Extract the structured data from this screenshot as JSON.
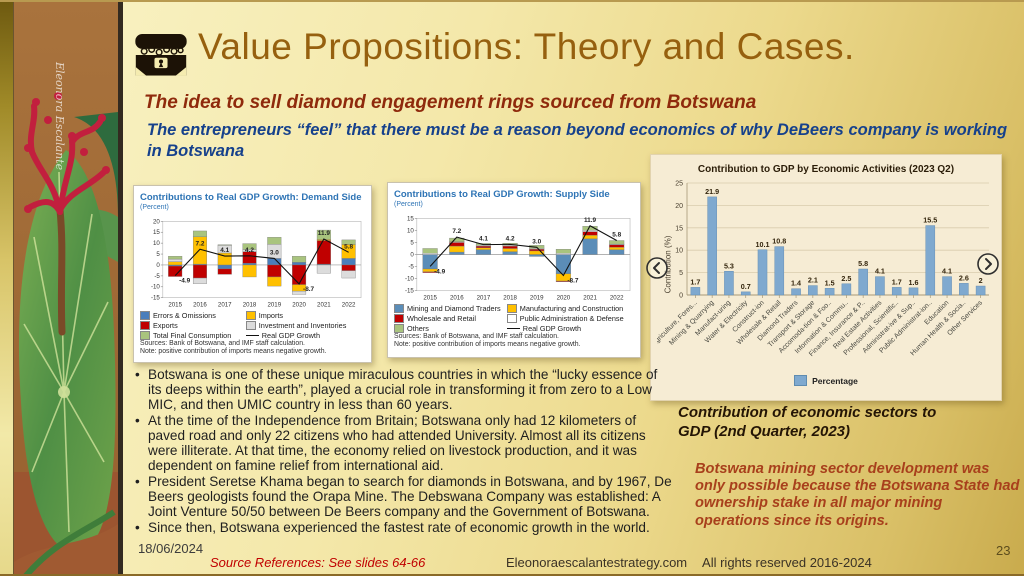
{
  "header": {
    "title": "Value Propositions: Theory and Cases.",
    "subtitle_red": "The idea to sell diamond engagement rings sourced from Botswana",
    "subtitle_blue": "The entrepreneurs “feel” that there must be a reason beyond economics of why DeBeers company is working in Botswana"
  },
  "artwork": {
    "signature": "Eleonora Escalante"
  },
  "bullets": [
    "Botswana is one of these unique miraculous countries in which the “lucky essence of its deeps within the earth”, played a crucial role in transforming it from zero to a Low MIC, and then UMIC country in less than 60 years.",
    "At the time of the Independence from Britain; Botswana only had 12 kilometers of paved road and only 22 citizens who had attended University.  Almost all its citizens were illiterate. At that time, the economy relied on livestock  production, and it was dependent on famine relief from international aid.",
    "President Seretse Khama began to search for diamonds in Botswana, and by 1967, De Beers geologists found the Orapa Mine. The Debswana Company was established: A Joint Venture  50/50 between De Beers company and the Government of Botswana.",
    "Since then, Botswana experienced the fastest rate of economic growth in the world."
  ],
  "caption": "Contribution of economic sectors to GDP (2nd Quarter, 2023)",
  "highlight": "Botswana mining sector development was only possible because the Botswana State had ownership stake in all major mining operations since its origins.",
  "footer": {
    "date": "18/06/2024",
    "source_references": "Source References: See slides 64-66",
    "website": "Eleonoraescalantestrategy.com",
    "rights": "All rights reserved 2016-2024",
    "slide_number": "23"
  },
  "colors": {
    "accent_brown": "#96600f",
    "subtitle_red": "#8f2a0c",
    "subtitle_blue": "#16418c",
    "highlight_red": "#a8401c",
    "chart_title_blue": "#2e74b5",
    "bar_blue": "#7fa9cf"
  },
  "chart_data": [
    {
      "type": "bar-stacked+line",
      "title": "Contributions to Real GDP Growth: Demand Side",
      "unit_label": "(Percent)",
      "categories": [
        "2015",
        "2016",
        "2017",
        "2018",
        "2019",
        "2020",
        "2021",
        "2022"
      ],
      "ylim": [
        -15,
        20
      ],
      "yticks": [
        20,
        15,
        10,
        5,
        0,
        -5,
        -10,
        -15
      ],
      "series": [
        {
          "name": "Errors & Omissions",
          "color": "#4a7ebb",
          "values": [
            -0.5,
            0.4,
            -1.8,
            0.8,
            3.0,
            1.2,
            0.4,
            3.0
          ]
        },
        {
          "name": "Exports",
          "color": "#c00000",
          "values": [
            -4.8,
            -6.0,
            -2.5,
            5.3,
            -5.5,
            -9.0,
            10.8,
            -2.6
          ]
        },
        {
          "name": "Imports",
          "color": "#ffc000",
          "values": [
            1.5,
            12.5,
            5.5,
            -5.5,
            -4.2,
            -3.0,
            0.5,
            6.4
          ]
        },
        {
          "name": "Investment and Inventories",
          "color": "#dcdcdc",
          "values": [
            1.2,
            -2.6,
            3.5,
            1.0,
            6.5,
            -1.5,
            -3.8,
            -3.4
          ]
        },
        {
          "name": "Total Final Consumption",
          "color": "#a9c47e",
          "values": [
            1.3,
            2.7,
            0.3,
            2.7,
            3.2,
            2.8,
            4.3,
            2.1
          ]
        }
      ],
      "line": {
        "name": "Real GDP Growth",
        "color": "#111111",
        "values": [
          -4.9,
          7.2,
          4.1,
          4.2,
          3.0,
          -8.7,
          11.9,
          5.8
        ],
        "labels": [
          "-4.9",
          "7.2",
          "4.1",
          "4.2",
          "3.0",
          "-8.7",
          "11.9",
          "5.8"
        ]
      },
      "legend_rows": [
        {
          "label": "Errors & Omissions",
          "type": "box",
          "color": "#4a7ebb"
        },
        {
          "label": "Imports",
          "type": "box",
          "color": "#ffc000"
        },
        {
          "label": "Exports",
          "type": "box",
          "color": "#c00000"
        },
        {
          "label": "Investment and Inventories",
          "type": "box",
          "color": "#dcdcdc"
        },
        {
          "label": "Total Final Consumption",
          "type": "box",
          "color": "#a9c47e"
        },
        {
          "label": "Real GDP Growth",
          "type": "line",
          "color": "#111111"
        }
      ],
      "source": "Sources: Bank of Botswana, and IMF staff calculation.",
      "note": "Note: positive contribution of imports means negative growth."
    },
    {
      "type": "bar-stacked+line",
      "title": "Contributions to Real GDP Growth: Supply Side",
      "unit_label": "(Percent)",
      "categories": [
        "2015",
        "2016",
        "2017",
        "2018",
        "2019",
        "2020",
        "2021",
        "2022"
      ],
      "ylim": [
        -15,
        15
      ],
      "yticks": [
        15,
        10,
        5,
        0,
        -5,
        -10,
        -15
      ],
      "series": [
        {
          "name": "Mining and Diamond Traders",
          "color": "#5b8db8",
          "values": [
            -6.0,
            1.0,
            2.0,
            1.2,
            -0.8,
            -8.0,
            6.5,
            2.0
          ]
        },
        {
          "name": "Manufacturing and Construction",
          "color": "#ffc000",
          "values": [
            -1.2,
            2.5,
            0.8,
            1.3,
            1.5,
            -3.0,
            1.5,
            1.0
          ]
        },
        {
          "name": "Wholesale and Retail",
          "color": "#c00000",
          "values": [
            -0.3,
            1.5,
            0.7,
            1.0,
            0.7,
            -0.3,
            1.5,
            1.0
          ]
        },
        {
          "name": "Public Administration & Defense",
          "color": "#ffffff",
          "values": [
            0.5,
            0.3,
            0.3,
            0.3,
            0.3,
            0.5,
            0.5,
            0.3
          ]
        },
        {
          "name": "Others",
          "color": "#a9c47e",
          "values": [
            2.0,
            1.5,
            0.8,
            0.9,
            1.3,
            1.7,
            1.7,
            1.5
          ]
        }
      ],
      "line": {
        "name": "Real GDP Growth",
        "color": "#111111",
        "values": [
          -4.9,
          7.2,
          4.1,
          4.2,
          3.0,
          -8.7,
          11.9,
          5.8
        ],
        "labels": [
          "-4.9",
          "7.2",
          "4.1",
          "4.2",
          "3.0",
          "-8.7",
          "11.9",
          "5.8"
        ]
      },
      "legend_rows": [
        {
          "label": "Mining and Diamond Traders",
          "type": "box",
          "color": "#5b8db8"
        },
        {
          "label": "Manufacturing and Construction",
          "type": "box",
          "color": "#ffc000"
        },
        {
          "label": "Wholesale and Retail",
          "type": "box",
          "color": "#c00000"
        },
        {
          "label": "Public Administration & Defense",
          "type": "box",
          "color": "#ffffff"
        },
        {
          "label": "Others",
          "type": "box",
          "color": "#a9c47e"
        },
        {
          "label": "Real GDP Growth",
          "type": "line",
          "color": "#111111"
        }
      ],
      "source": "Sources: Bank of Botswana, and IMF staff calculation.",
      "note": "Note: positive contribution of imports means negative growth."
    },
    {
      "type": "bar",
      "title": "Contribution to GDP by Economic Activities (2023 Q2)",
      "ylabel": "Contribution (%)",
      "legend": "Percentage",
      "bar_color": "#7fa9cf",
      "ylim": [
        0,
        25
      ],
      "yticks": [
        0,
        5,
        10,
        15,
        20,
        25
      ],
      "categories": [
        "Agriculture, Fores...",
        "Mining & Quarrying",
        "Manufact-uring",
        "Water & Electricity",
        "Construct-ion",
        "Wholesale & Retail",
        "Diamond Traders",
        "Transport & Storage",
        "Accomoda-tion & Foo..",
        "Information & Commu..",
        "Finance, Insurance & P..",
        "Real Estate Activities",
        "Professional, Scientific..",
        "Administrat-ive & Sup..",
        "Public Administrat-ion..",
        "Education",
        "Human Health & Socia..",
        "Other Services"
      ],
      "values": [
        1.7,
        21.9,
        5.3,
        0.7,
        10.1,
        10.8,
        1.4,
        2.1,
        1.5,
        2.5,
        5.8,
        4.1,
        1.7,
        1.6,
        15.5,
        4.1,
        2.6,
        2
      ]
    }
  ]
}
